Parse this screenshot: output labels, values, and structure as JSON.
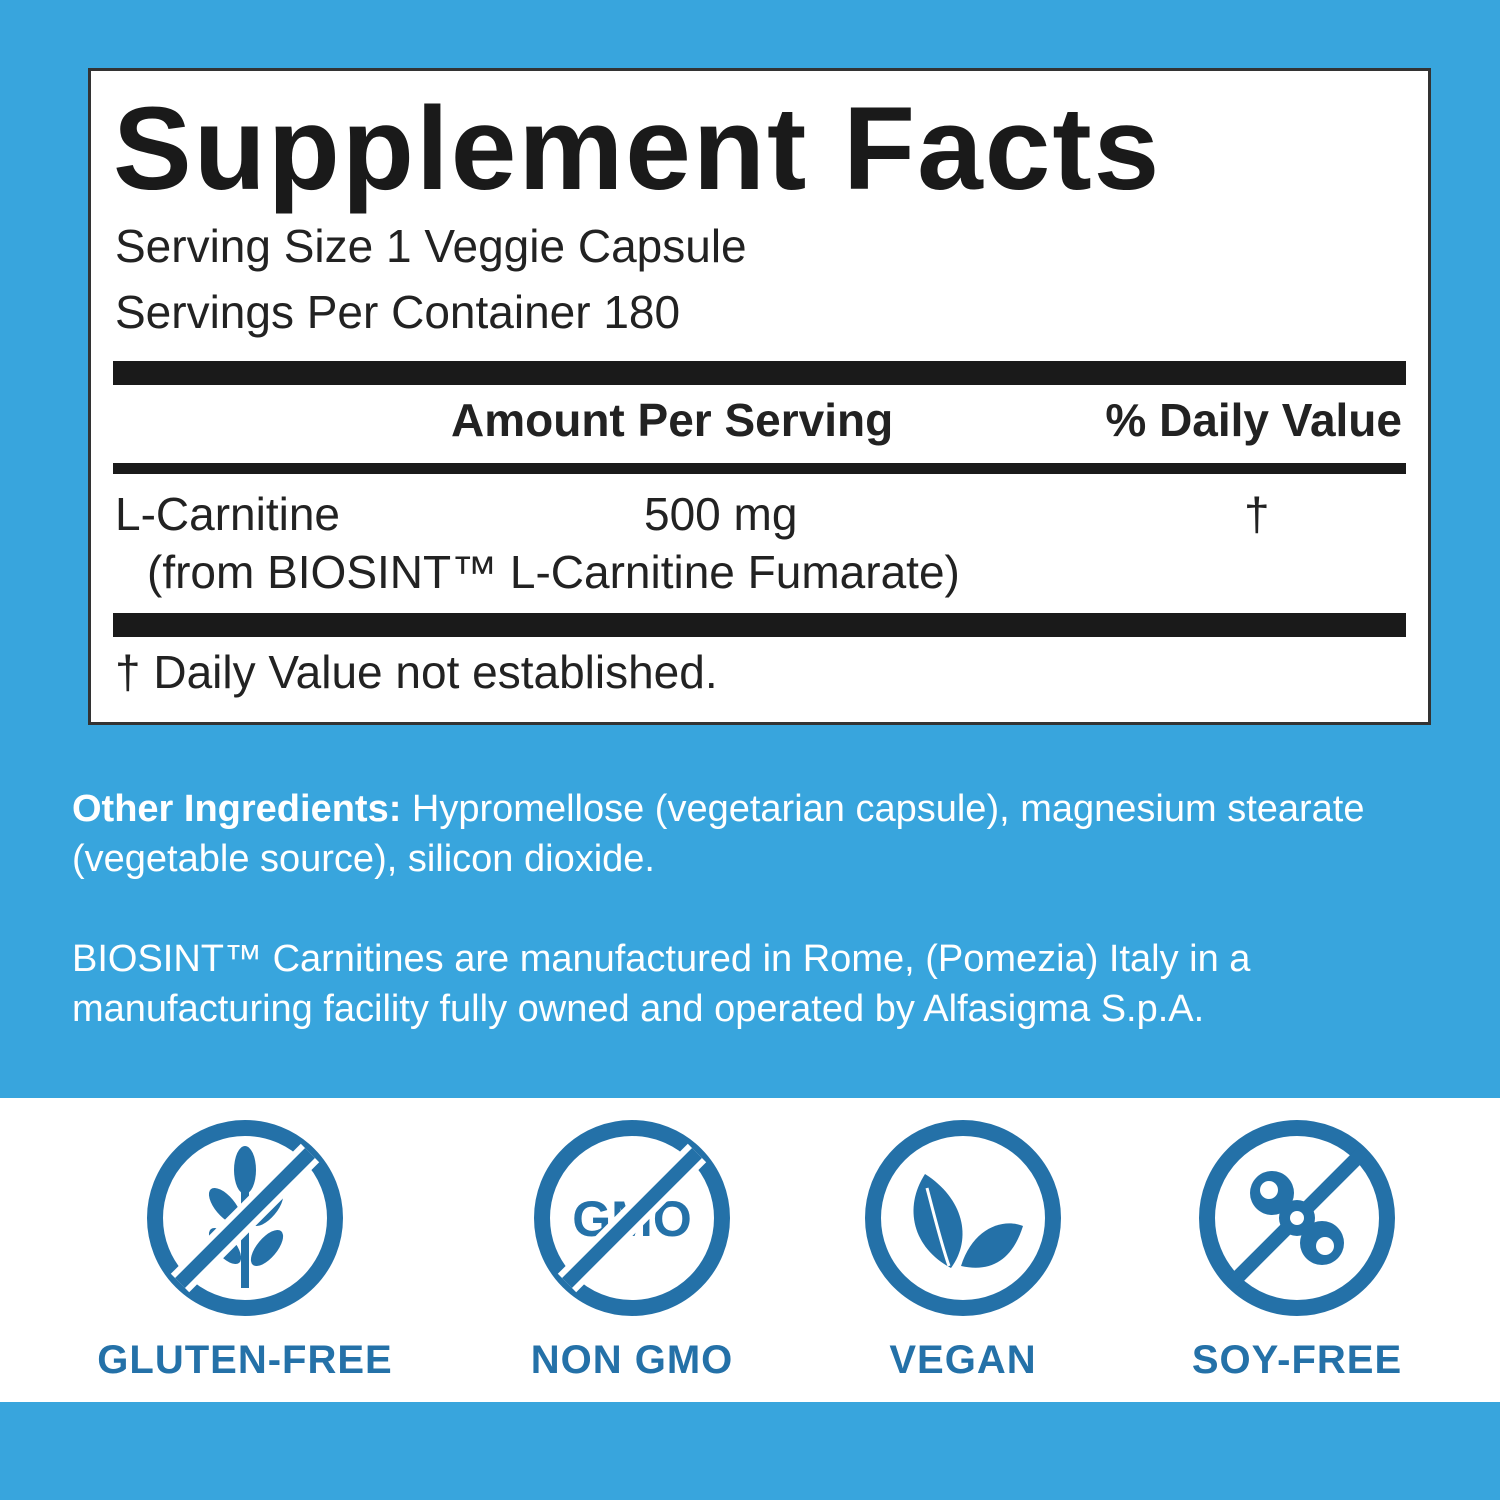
{
  "facts": {
    "title": "Supplement Facts",
    "serving_size": "Serving Size  1 Veggie Capsule",
    "servings_per_container": "Servings Per Container  180",
    "header_amount": "Amount Per Serving",
    "header_dv": "% Daily Value",
    "rows": [
      {
        "name": "L-Carnitine",
        "amount": "500 mg",
        "dv": "†",
        "source": "(from BIOSINT™ L-Carnitine Fumarate)"
      }
    ],
    "footnote": "† Daily Value not established."
  },
  "other": {
    "label": "Other Ingredients:",
    "text_line1": " Hypromellose (vegetarian capsule), magnesium stearate",
    "text_line2": "(vegetable source), silicon dioxide."
  },
  "biosint": {
    "line1": "BIOSINT™ Carnitines are manufactured in Rome, (Pomezia) Italy in a",
    "line2": "manufacturing facility fully owned and operated by Alfasigma S.p.A."
  },
  "badges": [
    {
      "label": "GLUTEN-FREE",
      "icon": "wheat-crossed-icon"
    },
    {
      "label": "NON GMO",
      "icon": "gmo-crossed-icon",
      "icon_text": "GMO"
    },
    {
      "label": "VEGAN",
      "icon": "leaves-icon"
    },
    {
      "label": "SOY-FREE",
      "icon": "soybean-crossed-icon"
    }
  ],
  "colors": {
    "background": "#38a5dd",
    "icon_blue": "#2471a8",
    "text_dark": "#1a1a1a"
  }
}
